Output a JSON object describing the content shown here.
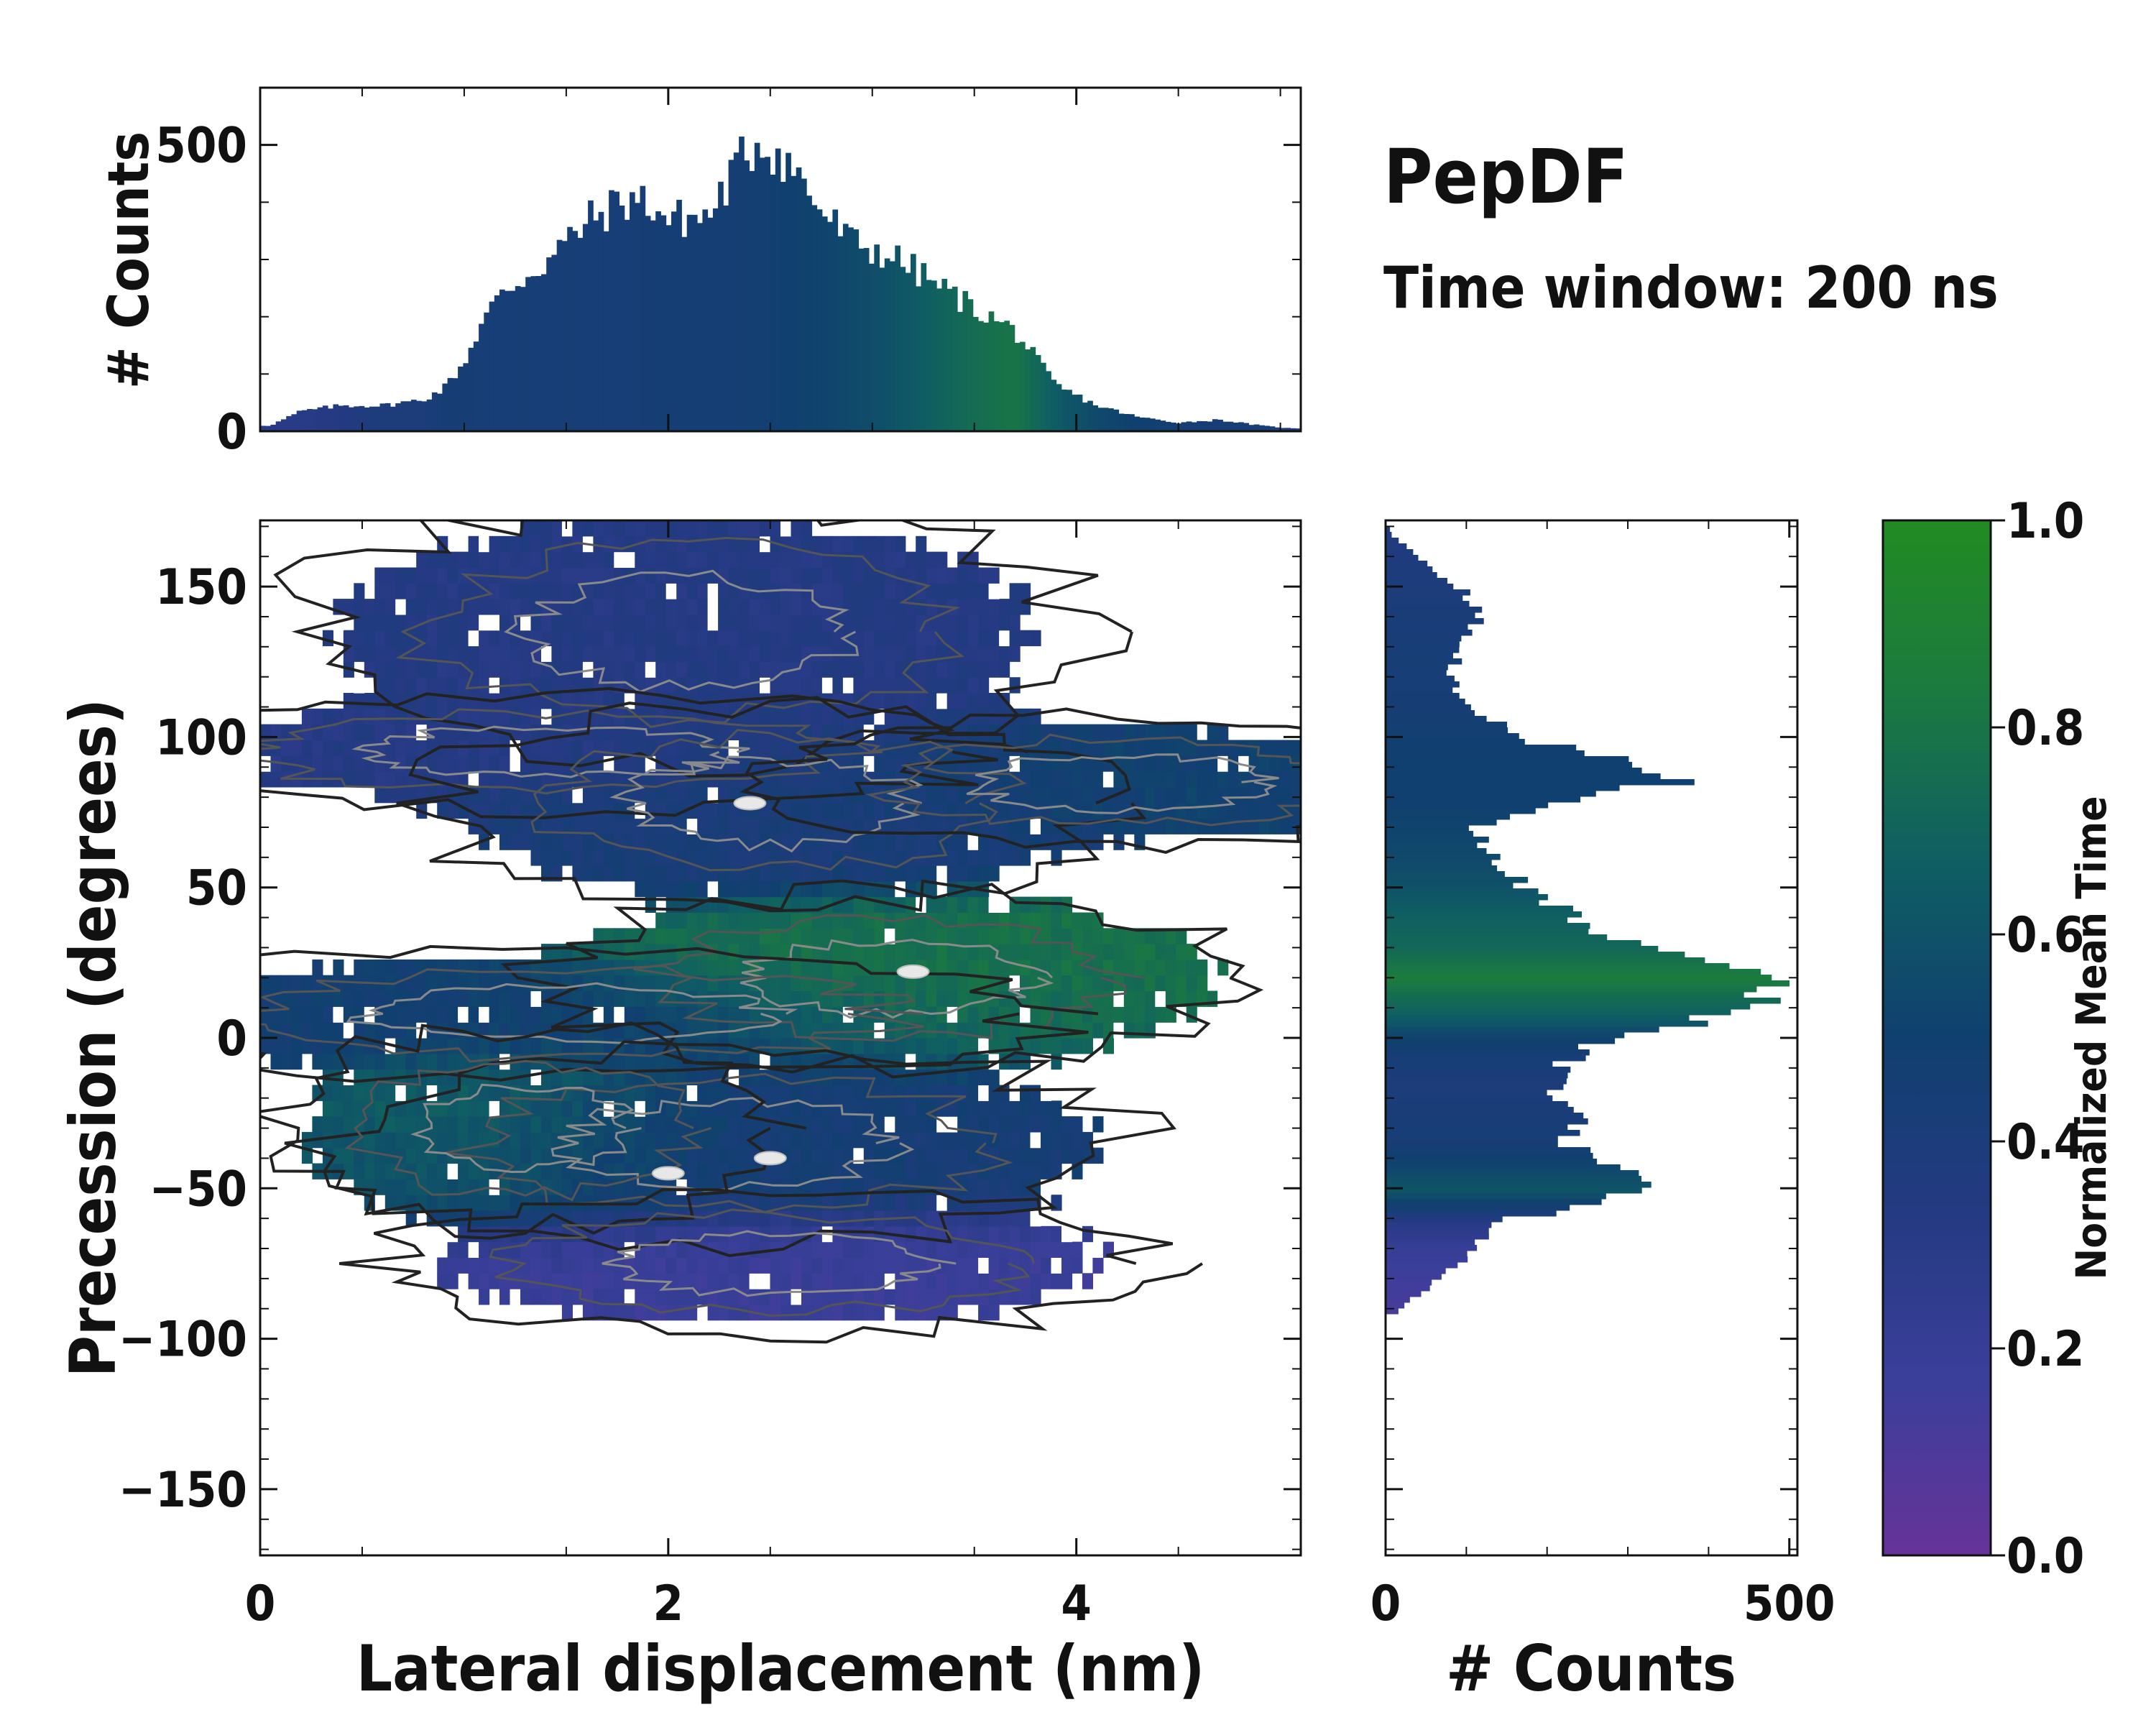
{
  "title": "PepDF",
  "subtitle": "Time window: 200 ns",
  "colormap": {
    "stops": [
      "#663399",
      "#3b3f9a",
      "#243a82",
      "#10406f",
      "#0f5e63",
      "#1b7a40",
      "#228b22"
    ],
    "label": "Normalized Mean Time",
    "ticks": [
      "0.0",
      "0.2",
      "0.4",
      "0.6",
      "0.8",
      "1.0"
    ],
    "range": [
      0,
      1
    ]
  },
  "chart_data": [
    {
      "type": "heatmap",
      "name": "main-joint-distribution",
      "xlabel": "Lateral displacement (nm)",
      "ylabel": "Precession (degrees)",
      "xlim": [
        0,
        5.1
      ],
      "ylim": [
        -172,
        172
      ],
      "xticks": [
        "0",
        "2",
        "4"
      ],
      "xtick_values": [
        0,
        2,
        4
      ],
      "yticks": [
        "150",
        "100",
        "50",
        "0",
        "−50",
        "−100",
        "−150"
      ],
      "ytick_values": [
        150,
        100,
        50,
        0,
        -50,
        -100,
        -150
      ],
      "clusters": [
        {
          "x": 2.1,
          "y": 135,
          "sx": 0.8,
          "sy": 18,
          "w": 0.9,
          "t": 0.33
        },
        {
          "x": 1.4,
          "y": 95,
          "sx": 0.9,
          "sy": 8,
          "w": 0.6,
          "t": 0.32
        },
        {
          "x": 2.5,
          "y": 78,
          "sx": 0.7,
          "sy": 14,
          "w": 1.0,
          "t": 0.42
        },
        {
          "x": 4.2,
          "y": 85,
          "sx": 0.7,
          "sy": 9,
          "w": 0.7,
          "t": 0.5
        },
        {
          "x": 3.1,
          "y": 20,
          "sx": 0.7,
          "sy": 12,
          "w": 1.2,
          "t": 0.78
        },
        {
          "x": 1.5,
          "y": 8,
          "sx": 1.0,
          "sy": 9,
          "w": 0.8,
          "t": 0.48
        },
        {
          "x": 2.3,
          "y": -35,
          "sx": 0.8,
          "sy": 14,
          "w": 1.1,
          "t": 0.45
        },
        {
          "x": 1.3,
          "y": -30,
          "sx": 0.5,
          "sy": 14,
          "w": 0.6,
          "t": 0.72
        },
        {
          "x": 2.5,
          "y": -75,
          "sx": 0.8,
          "sy": 10,
          "w": 0.7,
          "t": 0.18
        }
      ],
      "contour_hotspots": [
        {
          "x": 3.2,
          "y": 22
        },
        {
          "x": 2.0,
          "y": -45
        },
        {
          "x": 2.4,
          "y": 78
        },
        {
          "x": 2.5,
          "y": -40
        }
      ]
    },
    {
      "type": "bar",
      "name": "top-marginal-histogram",
      "xlabel": "",
      "ylabel": "# Counts",
      "xlim": [
        0,
        5.1
      ],
      "ylim": [
        0,
        600
      ],
      "yticks": [
        "0",
        "500"
      ],
      "ytick_values": [
        0,
        500
      ],
      "x": [
        0.05,
        0.2,
        0.4,
        0.6,
        0.8,
        0.9,
        1.0,
        1.1,
        1.2,
        1.4,
        1.6,
        1.8,
        1.9,
        2.0,
        2.2,
        2.35,
        2.45,
        2.6,
        2.75,
        2.9,
        3.1,
        3.3,
        3.5,
        3.7,
        3.9,
        4.1,
        4.3,
        4.5,
        4.7,
        4.9,
        5.05
      ],
      "values": [
        10,
        35,
        45,
        45,
        55,
        75,
        120,
        200,
        245,
        295,
        365,
        405,
        400,
        370,
        375,
        470,
        510,
        465,
        385,
        330,
        305,
        260,
        215,
        175,
        80,
        45,
        25,
        15,
        20,
        10,
        5
      ],
      "color_t": [
        0.3,
        0.3,
        0.34,
        0.4,
        0.4,
        0.45,
        0.45,
        0.44,
        0.44,
        0.43,
        0.44,
        0.44,
        0.45,
        0.46,
        0.46,
        0.46,
        0.47,
        0.5,
        0.52,
        0.55,
        0.6,
        0.68,
        0.75,
        0.8,
        0.65,
        0.55,
        0.5,
        0.45,
        0.45,
        0.42,
        0.4
      ]
    },
    {
      "type": "bar",
      "name": "right-marginal-histogram",
      "orientation": "horizontal",
      "xlabel": "# Counts",
      "ylabel": "",
      "xlim": [
        0,
        510
      ],
      "ylim": [
        -172,
        172
      ],
      "xticks": [
        "0",
        "500"
      ],
      "xtick_values": [
        0,
        500
      ],
      "y": [
        168,
        160,
        150,
        140,
        130,
        120,
        110,
        100,
        92,
        85,
        78,
        70,
        60,
        50,
        40,
        30,
        24,
        20,
        14,
        8,
        2,
        -5,
        -15,
        -25,
        -35,
        -45,
        -50,
        -55,
        -62,
        -70,
        -80,
        -90
      ],
      "values": [
        5,
        40,
        90,
        120,
        95,
        80,
        105,
        160,
        290,
        350,
        220,
        110,
        130,
        175,
        240,
        300,
        430,
        455,
        480,
        420,
        320,
        235,
        210,
        240,
        225,
        290,
        320,
        250,
        130,
        105,
        70,
        15
      ],
      "color_t": [
        0.35,
        0.38,
        0.4,
        0.42,
        0.43,
        0.44,
        0.45,
        0.48,
        0.5,
        0.5,
        0.5,
        0.52,
        0.55,
        0.6,
        0.68,
        0.72,
        0.8,
        0.85,
        0.75,
        0.68,
        0.55,
        0.45,
        0.4,
        0.42,
        0.45,
        0.55,
        0.62,
        0.5,
        0.3,
        0.2,
        0.15,
        0.12
      ]
    }
  ]
}
